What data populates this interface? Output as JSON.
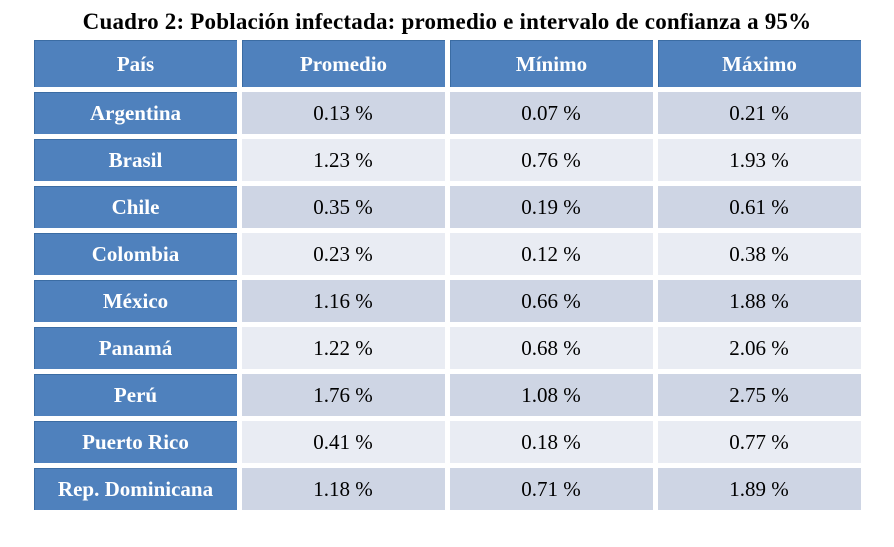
{
  "title": "Cuadro 2: Población infectada: promedio e intervalo de confianza a 95%",
  "table": {
    "columns": [
      "País",
      "Promedio",
      "Mínimo",
      "Máximo"
    ],
    "rows": [
      {
        "pais": "Argentina",
        "promedio": "0.13 %",
        "minimo": "0.07 %",
        "maximo": "0.21 %"
      },
      {
        "pais": "Brasil",
        "promedio": "1.23 %",
        "minimo": "0.76 %",
        "maximo": "1.93 %"
      },
      {
        "pais": "Chile",
        "promedio": "0.35 %",
        "minimo": "0.19 %",
        "maximo": "0.61 %"
      },
      {
        "pais": "Colombia",
        "promedio": "0.23 %",
        "minimo": "0.12 %",
        "maximo": "0.38 %"
      },
      {
        "pais": "México",
        "promedio": "1.16 %",
        "minimo": "0.66 %",
        "maximo": "1.88 %"
      },
      {
        "pais": "Panamá",
        "promedio": "1.22 %",
        "minimo": "0.68 %",
        "maximo": "2.06 %"
      },
      {
        "pais": "Perú",
        "promedio": "1.76 %",
        "minimo": "1.08 %",
        "maximo": "2.75 %"
      },
      {
        "pais": "Puerto Rico",
        "promedio": "0.41 %",
        "minimo": "0.18 %",
        "maximo": "0.77 %"
      },
      {
        "pais": "Rep. Dominicana",
        "promedio": "1.18 %",
        "minimo": "0.71 %",
        "maximo": "1.89 %"
      }
    ]
  },
  "chart_data": {
    "type": "table",
    "title": "Cuadro 2: Población infectada: promedio e intervalo de confianza a 95%",
    "columns": [
      "País",
      "Promedio",
      "Mínimo",
      "Máximo"
    ],
    "unit": "%",
    "rows": [
      [
        "Argentina",
        0.13,
        0.07,
        0.21
      ],
      [
        "Brasil",
        1.23,
        0.76,
        1.93
      ],
      [
        "Chile",
        0.35,
        0.19,
        0.61
      ],
      [
        "Colombia",
        0.23,
        0.12,
        0.38
      ],
      [
        "México",
        1.16,
        0.66,
        1.88
      ],
      [
        "Panamá",
        1.22,
        0.68,
        2.06
      ],
      [
        "Perú",
        1.76,
        1.08,
        2.75
      ],
      [
        "Puerto Rico",
        0.41,
        0.18,
        0.77
      ],
      [
        "Rep. Dominicana",
        1.18,
        0.71,
        1.89
      ]
    ]
  },
  "colors": {
    "header_blue": "#4f81bd",
    "row_band_dark": "#ced5e4",
    "row_band_light": "#e9ecf3",
    "cell_edge": "#3b6ca3",
    "header_text": "#ffffff",
    "body_text": "#000000"
  }
}
